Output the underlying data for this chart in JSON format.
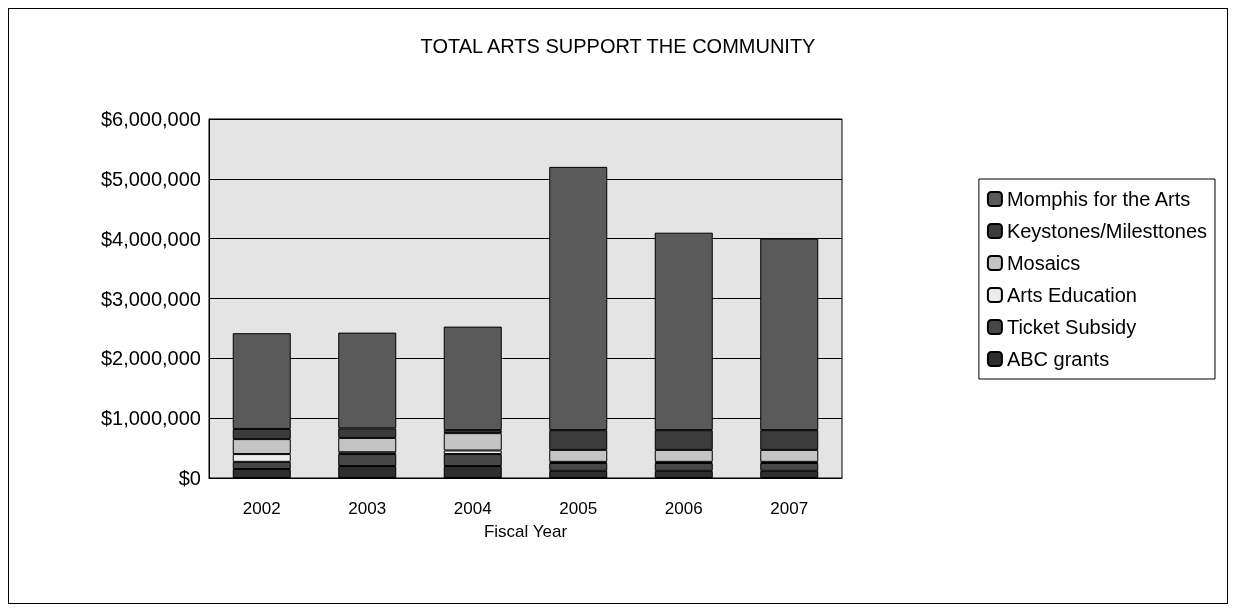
{
  "chart_data": {
    "type": "bar",
    "title": "TOTAL ARTS SUPPORT THE COMMUNITY",
    "xlabel": "Fiscal Year",
    "categories": [
      "2002",
      "2003",
      "2004",
      "2005",
      "2006",
      "2007"
    ],
    "stacked": true,
    "series": [
      {
        "name": "ABC grants",
        "color": "#2e2e2e",
        "values": [
          150000,
          200000,
          200000,
          120000,
          120000,
          120000
        ]
      },
      {
        "name": "Ticket Subsidy",
        "color": "#474747",
        "values": [
          120000,
          200000,
          200000,
          130000,
          130000,
          130000
        ]
      },
      {
        "name": "Arts Education",
        "color": "#ececec",
        "values": [
          130000,
          30000,
          60000,
          20000,
          20000,
          20000
        ]
      },
      {
        "name": "Mosaics",
        "color": "#c4c4c4",
        "values": [
          250000,
          240000,
          290000,
          200000,
          200000,
          200000
        ]
      },
      {
        "name": "Keystones/Milesttones",
        "color": "#3c3c3c",
        "values": [
          170000,
          160000,
          50000,
          330000,
          330000,
          330000
        ]
      },
      {
        "name": "Momphis for the Arts",
        "color": "#5a5a5a",
        "values": [
          1600000,
          1600000,
          1730000,
          4400000,
          3300000,
          3200000
        ]
      }
    ],
    "ylim": [
      0,
      6000000
    ],
    "yticks": [
      {
        "value": 0,
        "label": "$0"
      },
      {
        "value": 1000000,
        "label": "$1,000,000"
      },
      {
        "value": 2000000,
        "label": "$2,000,000"
      },
      {
        "value": 3000000,
        "label": "$3,000,000"
      },
      {
        "value": 4000000,
        "label": "$4,000,000"
      },
      {
        "value": 5000000,
        "label": "$5,000,000"
      },
      {
        "value": 6000000,
        "label": "$6,000,000"
      }
    ],
    "grid": "y",
    "legend": "right"
  }
}
